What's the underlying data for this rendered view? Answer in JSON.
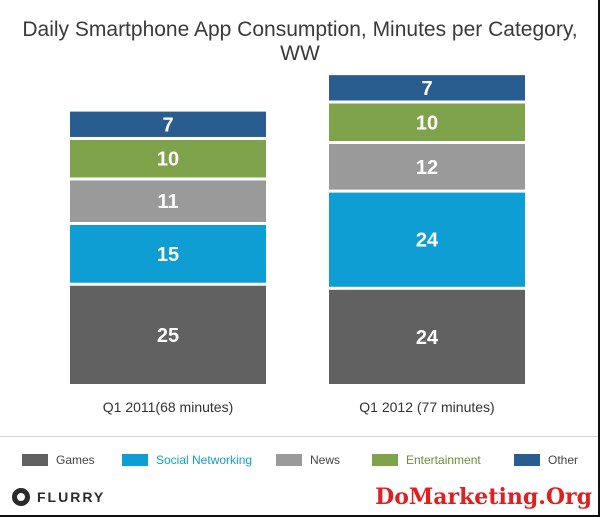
{
  "chart_data": {
    "type": "bar",
    "stacked": true,
    "title": "Daily Smartphone App Consumption, Minutes per Category, WW",
    "categories": [
      "Q1 2011(68 minutes)",
      "Q1 2012 (77 minutes)"
    ],
    "series": [
      {
        "name": "Games",
        "color": "#616161",
        "values": [
          25,
          24
        ]
      },
      {
        "name": "Social Networking",
        "color": "#0e9ed3",
        "values": [
          15,
          24
        ]
      },
      {
        "name": "News",
        "color": "#9a9a9a",
        "values": [
          11,
          12
        ]
      },
      {
        "name": "Entertainment",
        "color": "#7ea34a",
        "values": [
          10,
          10
        ]
      },
      {
        "name": "Other",
        "color": "#2a5d8f",
        "values": [
          7,
          7
        ]
      }
    ],
    "legend_position": "bottom",
    "grid": false
  },
  "branding": {
    "logo_text": "FLURRY",
    "watermark": "DoMarketing.Org"
  }
}
